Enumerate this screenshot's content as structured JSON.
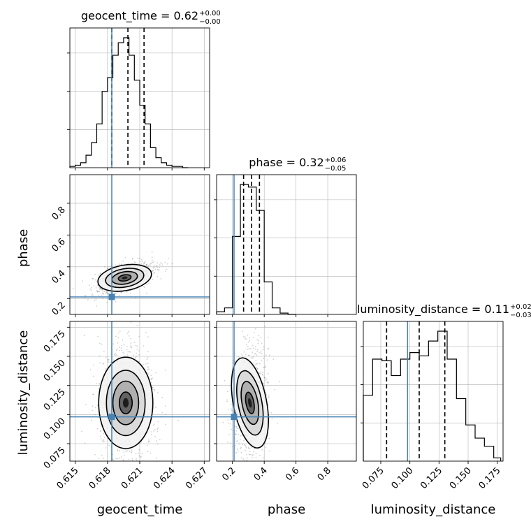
{
  "chart_data": {
    "type": "corner",
    "parameters": [
      "geocent_time",
      "phase",
      "luminosity_distance"
    ],
    "xlabels": [
      "geocent_time",
      "phase",
      "luminosity_distance"
    ],
    "ylabels": [
      "",
      "phase",
      "luminosity_distance"
    ],
    "titles": [
      {
        "text": "geocent_time = 0.62",
        "plus": "+0.00",
        "minus": "−0.00"
      },
      {
        "text": "phase = 0.32",
        "plus": "+0.06",
        "minus": "−0.05"
      },
      {
        "text": "luminosity_distance = 0.11",
        "plus": "+0.02",
        "minus": "−0.03"
      }
    ],
    "ranges": [
      [
        0.6145,
        0.6275
      ],
      [
        0.1,
        0.98
      ],
      [
        0.06,
        0.18
      ]
    ],
    "ticks": [
      [
        "0.615",
        "0.618",
        "0.621",
        "0.624",
        "0.627"
      ],
      [
        "0.2",
        "0.4",
        "0.6",
        "0.8"
      ],
      [
        "0.075",
        "0.100",
        "0.125",
        "0.150",
        "0.175"
      ]
    ],
    "injection": {
      "geocent_time": 0.6184,
      "phase": 0.21,
      "luminosity_distance": 0.098
    },
    "quantiles": {
      "geocent_time": [
        0.6184,
        0.6199,
        0.6214
      ],
      "phase": [
        0.27,
        0.32,
        0.37
      ],
      "luminosity_distance": [
        0.08,
        0.108,
        0.13
      ]
    },
    "hist_1d": {
      "geocent_time": {
        "edges": [
          0.6145,
          0.615,
          0.6155,
          0.616,
          0.6165,
          0.617,
          0.6175,
          0.618,
          0.6185,
          0.619,
          0.6195,
          0.62,
          0.6205,
          0.621,
          0.6215,
          0.622,
          0.6225,
          0.623,
          0.6235,
          0.624,
          0.6245,
          0.625,
          0.6255
        ],
        "counts": [
          1,
          2,
          4,
          10,
          20,
          35,
          61,
          72,
          90,
          100,
          104,
          90,
          70,
          50,
          35,
          16,
          8,
          4,
          2,
          1,
          1,
          0
        ]
      },
      "phase": {
        "edges": [
          0.1,
          0.15,
          0.2,
          0.25,
          0.3,
          0.35,
          0.4,
          0.45,
          0.5,
          0.55,
          0.6
        ],
        "counts": [
          2,
          5,
          60,
          100,
          98,
          80,
          25,
          5,
          1,
          0
        ]
      },
      "luminosity_distance": {
        "edges": [
          0.06,
          0.068,
          0.076,
          0.084,
          0.092,
          0.1,
          0.108,
          0.116,
          0.124,
          0.132,
          0.14,
          0.148,
          0.156,
          0.164,
          0.172,
          0.178
        ],
        "counts": [
          40,
          62,
          61,
          52,
          62,
          66,
          64,
          73,
          79,
          62,
          38,
          22,
          14,
          9,
          2
        ]
      }
    },
    "density_2d": {
      "geocent_time_phase": {
        "center": [
          0.6196,
          0.33
        ],
        "spread": [
          0.0012,
          0.045
        ],
        "rho": 0.55
      },
      "geocent_time_luminosity_distance": {
        "center": [
          0.6197,
          0.11
        ],
        "spread": [
          0.0012,
          0.022
        ],
        "rho": 0.0
      },
      "phase_luminosity_distance": {
        "center": [
          0.31,
          0.11
        ],
        "spread": [
          0.05,
          0.022
        ],
        "rho": 0.1
      }
    },
    "colors": {
      "injection": "#4682b4",
      "hist": "#000000",
      "grid": "#b0b0b0",
      "points": "#7a7a7a"
    },
    "grid": true
  }
}
